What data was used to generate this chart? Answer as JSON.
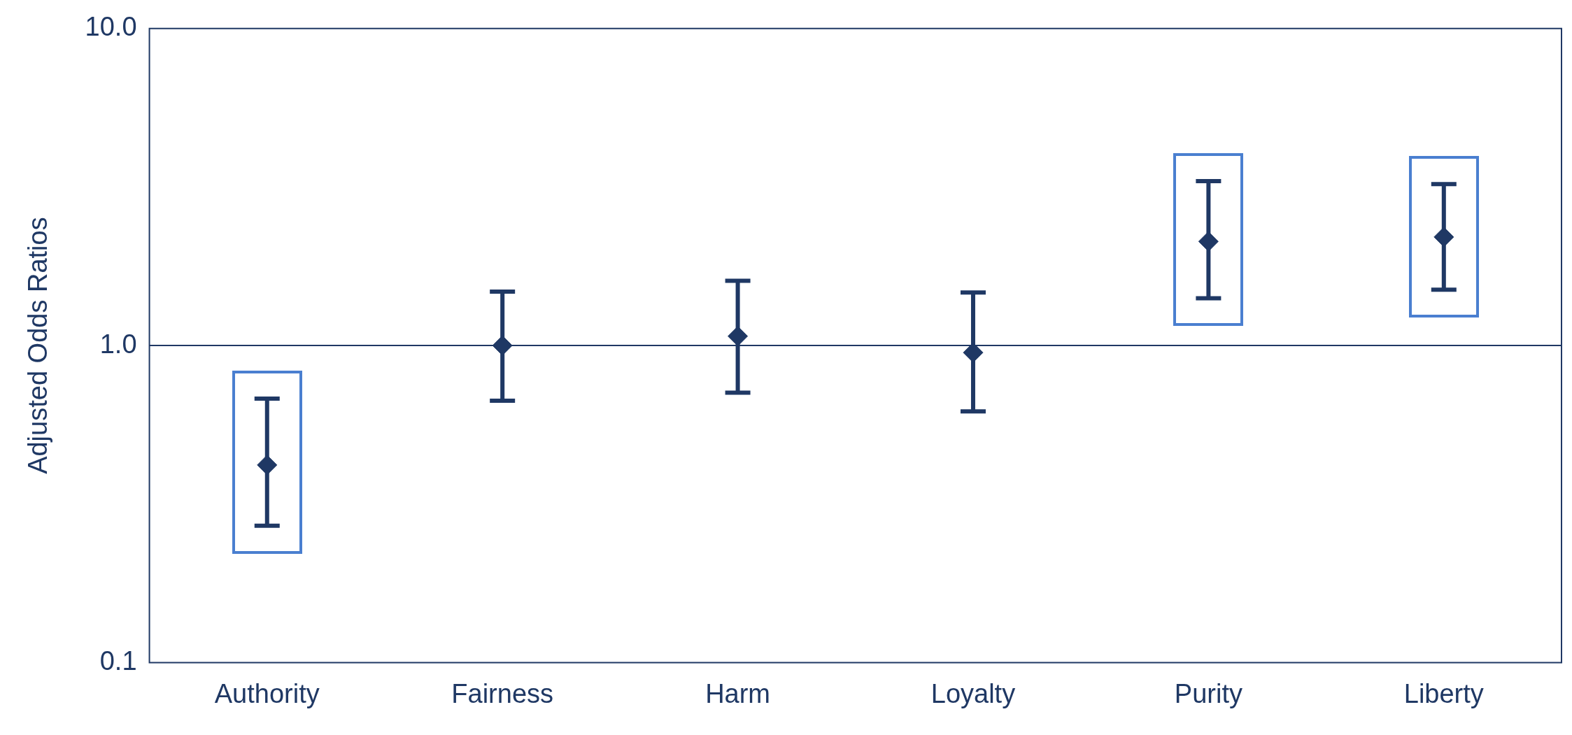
{
  "chart_data": {
    "type": "scatter",
    "categories": [
      "Authority",
      "Fairness",
      "Harm",
      "Loyalty",
      "Purity",
      "Liberty"
    ],
    "values": [
      0.42,
      1.0,
      1.07,
      0.95,
      2.13,
      2.2
    ],
    "errors": [
      [
        0.27,
        0.68
      ],
      [
        0.67,
        1.48
      ],
      [
        0.71,
        1.6
      ],
      [
        0.62,
        1.47
      ],
      [
        1.41,
        3.3
      ],
      [
        1.5,
        3.23
      ]
    ],
    "color": "#1f3864",
    "ylabel": "Adjusted Odds Ratios",
    "log": "y",
    "ylim": [
      0.1,
      10
    ],
    "yticks": [
      {
        "value": 0.1,
        "label": "0.1"
      },
      {
        "value": 1,
        "label": "1.0"
      },
      {
        "value": 10,
        "label": "10.0"
      }
    ],
    "ref_lines": [
      {
        "axis": "y",
        "value": 1,
        "color": "#1f3864"
      }
    ],
    "marker": "diamond",
    "grid": false,
    "legend": false
  }
}
